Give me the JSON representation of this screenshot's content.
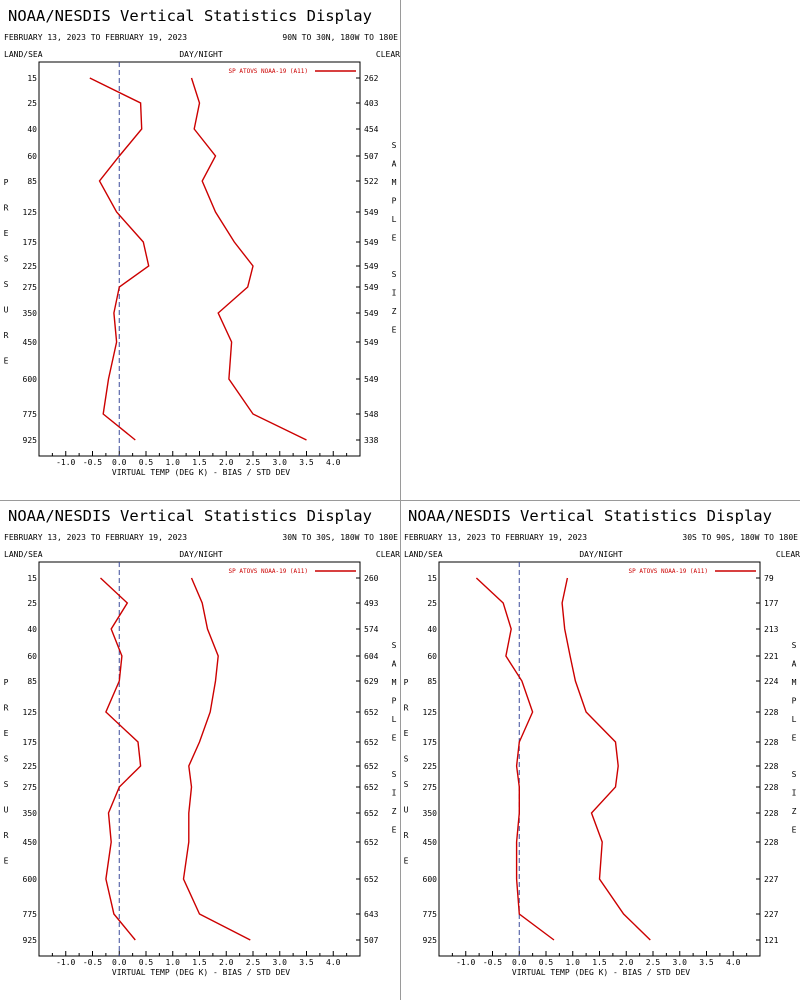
{
  "chart_data": [
    {
      "type": "line",
      "title": "NOAA/NESDIS Vertical Statistics Display",
      "date_range": "FEBRUARY 13, 2023 TO FEBRUARY 19, 2023",
      "region": "90N TO 30N, 180W TO 180E",
      "surface_label": "LAND/SEA",
      "time_label": "DAY/NIGHT",
      "sky_label": "CLEAR",
      "xlabel": "VIRTUAL TEMP (DEG K) - BIAS / STD DEV",
      "ylabel": "PRESSURE",
      "y2label": "SAMPLE SIZE",
      "xlim": [
        -1.5,
        4.5
      ],
      "xticks": [
        "-1.0",
        "-0.5",
        "0.0",
        "0.5",
        "1.0",
        "1.5",
        "2.0",
        "2.5",
        "3.0",
        "3.5",
        "4.0"
      ],
      "pressure_levels": [
        "15",
        "25",
        "40",
        "60",
        "85",
        "125",
        "175",
        "225",
        "275",
        "350",
        "450",
        "600",
        "775",
        "925"
      ],
      "sample_size": [
        "262",
        "403",
        "454",
        "507",
        "522",
        "549",
        "549",
        "549",
        "549",
        "549",
        "549",
        "549",
        "548",
        "338"
      ],
      "series": [
        {
          "name": "SP ATOVS NOAA-19 (A11)",
          "values": [
            -0.55,
            0.4,
            0.42,
            0.0,
            -0.37,
            -0.05,
            0.45,
            0.55,
            0.0,
            -0.1,
            -0.05,
            -0.2,
            -0.3,
            0.3
          ]
        },
        {
          "values": [
            1.35,
            1.5,
            1.4,
            1.8,
            1.55,
            1.8,
            2.15,
            2.5,
            2.4,
            1.85,
            2.1,
            2.05,
            2.5,
            3.5
          ]
        }
      ],
      "legend_position": "top-right"
    },
    {
      "type": "line",
      "title": "NOAA/NESDIS Vertical Statistics Display",
      "date_range": "FEBRUARY 13, 2023 TO FEBRUARY 19, 2023",
      "region": "30N TO 30S, 180W TO 180E",
      "surface_label": "LAND/SEA",
      "time_label": "DAY/NIGHT",
      "sky_label": "CLEAR",
      "xlabel": "VIRTUAL TEMP (DEG K) - BIAS / STD DEV",
      "ylabel": "PRESSURE",
      "y2label": "SAMPLE SIZE",
      "xlim": [
        -1.5,
        4.5
      ],
      "xticks": [
        "-1.0",
        "-0.5",
        "0.0",
        "0.5",
        "1.0",
        "1.5",
        "2.0",
        "2.5",
        "3.0",
        "3.5",
        "4.0"
      ],
      "pressure_levels": [
        "15",
        "25",
        "40",
        "60",
        "85",
        "125",
        "175",
        "225",
        "275",
        "350",
        "450",
        "600",
        "775",
        "925"
      ],
      "sample_size": [
        "260",
        "493",
        "574",
        "604",
        "629",
        "652",
        "652",
        "652",
        "652",
        "652",
        "652",
        "652",
        "643",
        "507"
      ],
      "series": [
        {
          "name": "SP ATOVS NOAA-19 (A11)",
          "values": [
            -0.35,
            0.15,
            -0.15,
            0.05,
            0.0,
            -0.25,
            0.35,
            0.4,
            0.0,
            -0.2,
            -0.15,
            -0.25,
            -0.1,
            0.3
          ]
        },
        {
          "values": [
            1.35,
            1.55,
            1.65,
            1.85,
            1.8,
            1.7,
            1.5,
            1.3,
            1.35,
            1.3,
            1.3,
            1.2,
            1.5,
            2.45
          ]
        }
      ],
      "legend_position": "top-right"
    },
    {
      "type": "line",
      "title": "NOAA/NESDIS Vertical Statistics Display",
      "date_range": "FEBRUARY 13, 2023 TO FEBRUARY 19, 2023",
      "region": "30S TO 90S, 180W TO 180E",
      "surface_label": "LAND/SEA",
      "time_label": "DAY/NIGHT",
      "sky_label": "CLEAR",
      "xlabel": "VIRTUAL TEMP (DEG K) - BIAS / STD DEV",
      "ylabel": "PRESSURE",
      "y2label": "SAMPLE SIZE",
      "xlim": [
        -1.5,
        4.5
      ],
      "xticks": [
        "-1.0",
        "-0.5",
        "0.0",
        "0.5",
        "1.0",
        "1.5",
        "2.0",
        "2.5",
        "3.0",
        "3.5",
        "4.0"
      ],
      "pressure_levels": [
        "15",
        "25",
        "40",
        "60",
        "85",
        "125",
        "175",
        "225",
        "275",
        "350",
        "450",
        "600",
        "775",
        "925"
      ],
      "sample_size": [
        "79",
        "177",
        "213",
        "221",
        "224",
        "228",
        "228",
        "228",
        "228",
        "228",
        "228",
        "227",
        "227",
        "121"
      ],
      "series": [
        {
          "name": "SP ATOVS NOAA-19 (A11)",
          "values": [
            -0.8,
            -0.3,
            -0.15,
            -0.25,
            0.05,
            0.25,
            0.0,
            -0.05,
            0.0,
            0.0,
            -0.05,
            -0.05,
            0.0,
            0.65
          ]
        },
        {
          "values": [
            0.9,
            0.8,
            0.85,
            0.95,
            1.05,
            1.25,
            1.8,
            1.85,
            1.8,
            1.35,
            1.55,
            1.5,
            1.95,
            2.45
          ]
        }
      ],
      "legend_position": "top-right"
    }
  ]
}
